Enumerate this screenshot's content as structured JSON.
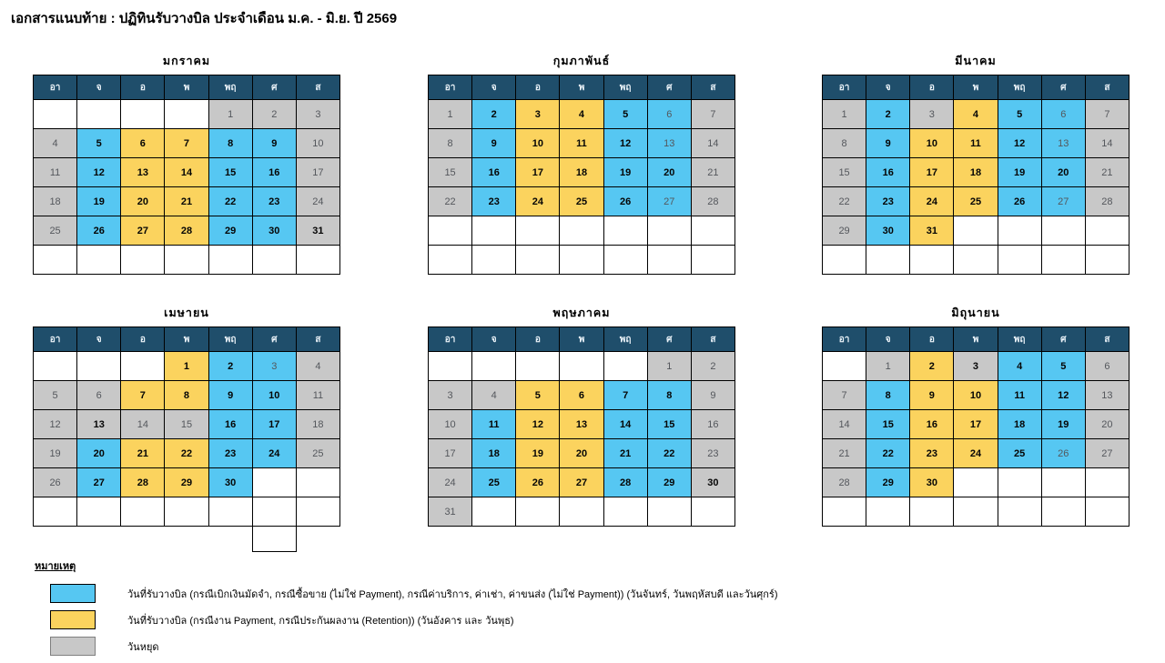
{
  "page": {
    "title": "เอกสารแนบท้าย : ปฏิทินรับวางบิล ประจำเดือน ม.ค. - มิ.ย. ปี 2569",
    "year_be": "2569"
  },
  "colors": {
    "header_bg": "#1F4E6B",
    "billing_blue": "#56C7F2",
    "payment_yellow": "#FBD35E",
    "holiday_gray": "#C8C8C8",
    "grid_border": "#000000",
    "muted_day_text": "#54575C"
  },
  "weekday_headers": [
    "อา",
    "จ",
    "อ",
    "พ",
    "พฤ",
    "ศ",
    "ส"
  ],
  "cell_format_note": "cell = [day_number, color_code(b=blue,y=yellow,g=gray), bold(1/0)], null = empty cell",
  "months": [
    {
      "name": "มกราคม",
      "rows": [
        [
          null,
          null,
          null,
          null,
          [
            1,
            "g",
            0
          ],
          [
            2,
            "g",
            0
          ],
          [
            3,
            "g",
            0
          ]
        ],
        [
          [
            4,
            "g",
            0
          ],
          [
            5,
            "b",
            1
          ],
          [
            6,
            "y",
            1
          ],
          [
            7,
            "y",
            1
          ],
          [
            8,
            "b",
            1
          ],
          [
            9,
            "b",
            1
          ],
          [
            10,
            "g",
            0
          ]
        ],
        [
          [
            11,
            "g",
            0
          ],
          [
            12,
            "b",
            1
          ],
          [
            13,
            "y",
            1
          ],
          [
            14,
            "y",
            1
          ],
          [
            15,
            "b",
            1
          ],
          [
            16,
            "b",
            1
          ],
          [
            17,
            "g",
            0
          ]
        ],
        [
          [
            18,
            "g",
            0
          ],
          [
            19,
            "b",
            1
          ],
          [
            20,
            "y",
            1
          ],
          [
            21,
            "y",
            1
          ],
          [
            22,
            "b",
            1
          ],
          [
            23,
            "b",
            1
          ],
          [
            24,
            "g",
            0
          ]
        ],
        [
          [
            25,
            "g",
            0
          ],
          [
            26,
            "b",
            1
          ],
          [
            27,
            "y",
            1
          ],
          [
            28,
            "y",
            1
          ],
          [
            29,
            "b",
            1
          ],
          [
            30,
            "b",
            1
          ],
          [
            31,
            "g",
            1
          ]
        ],
        [
          null,
          null,
          null,
          null,
          null,
          null,
          null
        ]
      ]
    },
    {
      "name": "กุมภาพันธ์",
      "rows": [
        [
          [
            1,
            "g",
            0
          ],
          [
            2,
            "b",
            1
          ],
          [
            3,
            "y",
            1
          ],
          [
            4,
            "y",
            1
          ],
          [
            5,
            "b",
            1
          ],
          [
            6,
            "b",
            0
          ],
          [
            7,
            "g",
            0
          ]
        ],
        [
          [
            8,
            "g",
            0
          ],
          [
            9,
            "b",
            1
          ],
          [
            10,
            "y",
            1
          ],
          [
            11,
            "y",
            1
          ],
          [
            12,
            "b",
            1
          ],
          [
            13,
            "b",
            0
          ],
          [
            14,
            "g",
            0
          ]
        ],
        [
          [
            15,
            "g",
            0
          ],
          [
            16,
            "b",
            1
          ],
          [
            17,
            "y",
            1
          ],
          [
            18,
            "y",
            1
          ],
          [
            19,
            "b",
            1
          ],
          [
            20,
            "b",
            1
          ],
          [
            21,
            "g",
            0
          ]
        ],
        [
          [
            22,
            "g",
            0
          ],
          [
            23,
            "b",
            1
          ],
          [
            24,
            "y",
            1
          ],
          [
            25,
            "y",
            1
          ],
          [
            26,
            "b",
            1
          ],
          [
            27,
            "b",
            0
          ],
          [
            28,
            "g",
            0
          ]
        ],
        [
          null,
          null,
          null,
          null,
          null,
          null,
          null
        ],
        [
          null,
          null,
          null,
          null,
          null,
          null,
          null
        ]
      ]
    },
    {
      "name": "มีนาคม",
      "rows": [
        [
          [
            1,
            "g",
            0
          ],
          [
            2,
            "b",
            1
          ],
          [
            3,
            "g",
            0
          ],
          [
            4,
            "y",
            1
          ],
          [
            5,
            "b",
            1
          ],
          [
            6,
            "b",
            0
          ],
          [
            7,
            "g",
            0
          ]
        ],
        [
          [
            8,
            "g",
            0
          ],
          [
            9,
            "b",
            1
          ],
          [
            10,
            "y",
            1
          ],
          [
            11,
            "y",
            1
          ],
          [
            12,
            "b",
            1
          ],
          [
            13,
            "b",
            0
          ],
          [
            14,
            "g",
            0
          ]
        ],
        [
          [
            15,
            "g",
            0
          ],
          [
            16,
            "b",
            1
          ],
          [
            17,
            "y",
            1
          ],
          [
            18,
            "y",
            1
          ],
          [
            19,
            "b",
            1
          ],
          [
            20,
            "b",
            1
          ],
          [
            21,
            "g",
            0
          ]
        ],
        [
          [
            22,
            "g",
            0
          ],
          [
            23,
            "b",
            1
          ],
          [
            24,
            "y",
            1
          ],
          [
            25,
            "y",
            1
          ],
          [
            26,
            "b",
            1
          ],
          [
            27,
            "b",
            0
          ],
          [
            28,
            "g",
            0
          ]
        ],
        [
          [
            29,
            "g",
            0
          ],
          [
            30,
            "b",
            1
          ],
          [
            31,
            "y",
            1
          ],
          null,
          null,
          null,
          null
        ],
        [
          null,
          null,
          null,
          null,
          null,
          null,
          null
        ]
      ]
    },
    {
      "name": "เมษายน",
      "rows": [
        [
          null,
          null,
          null,
          [
            1,
            "y",
            1
          ],
          [
            2,
            "b",
            1
          ],
          [
            3,
            "b",
            0
          ],
          [
            4,
            "g",
            0
          ]
        ],
        [
          [
            5,
            "g",
            0
          ],
          [
            6,
            "g",
            0
          ],
          [
            7,
            "y",
            1
          ],
          [
            8,
            "y",
            1
          ],
          [
            9,
            "b",
            1
          ],
          [
            10,
            "b",
            1
          ],
          [
            11,
            "g",
            0
          ]
        ],
        [
          [
            12,
            "g",
            0
          ],
          [
            13,
            "g",
            1
          ],
          [
            14,
            "g",
            0
          ],
          [
            15,
            "g",
            0
          ],
          [
            16,
            "b",
            1
          ],
          [
            17,
            "b",
            1
          ],
          [
            18,
            "g",
            0
          ]
        ],
        [
          [
            19,
            "g",
            0
          ],
          [
            20,
            "b",
            1
          ],
          [
            21,
            "y",
            1
          ],
          [
            22,
            "y",
            1
          ],
          [
            23,
            "b",
            1
          ],
          [
            24,
            "b",
            1
          ],
          [
            25,
            "g",
            0
          ]
        ],
        [
          [
            26,
            "g",
            0
          ],
          [
            27,
            "b",
            1
          ],
          [
            28,
            "y",
            1
          ],
          [
            29,
            "y",
            1
          ],
          [
            30,
            "b",
            1
          ],
          null,
          null
        ],
        [
          null,
          null,
          null,
          null,
          null,
          null,
          null
        ]
      ],
      "extra_cell": {
        "col": 5
      }
    },
    {
      "name": "พฤษภาคม",
      "rows": [
        [
          null,
          null,
          null,
          null,
          null,
          [
            1,
            "g",
            0
          ],
          [
            2,
            "g",
            0
          ]
        ],
        [
          [
            3,
            "g",
            0
          ],
          [
            4,
            "g",
            0
          ],
          [
            5,
            "y",
            1
          ],
          [
            6,
            "y",
            1
          ],
          [
            7,
            "b",
            1
          ],
          [
            8,
            "b",
            1
          ],
          [
            9,
            "g",
            0
          ]
        ],
        [
          [
            10,
            "g",
            0
          ],
          [
            11,
            "b",
            1
          ],
          [
            12,
            "y",
            1
          ],
          [
            13,
            "y",
            1
          ],
          [
            14,
            "b",
            1
          ],
          [
            15,
            "b",
            1
          ],
          [
            16,
            "g",
            0
          ]
        ],
        [
          [
            17,
            "g",
            0
          ],
          [
            18,
            "b",
            1
          ],
          [
            19,
            "y",
            1
          ],
          [
            20,
            "y",
            1
          ],
          [
            21,
            "b",
            1
          ],
          [
            22,
            "b",
            1
          ],
          [
            23,
            "g",
            0
          ]
        ],
        [
          [
            24,
            "g",
            0
          ],
          [
            25,
            "b",
            1
          ],
          [
            26,
            "y",
            1
          ],
          [
            27,
            "y",
            1
          ],
          [
            28,
            "b",
            1
          ],
          [
            29,
            "b",
            1
          ],
          [
            30,
            "g",
            1
          ]
        ],
        [
          [
            31,
            "g",
            0
          ],
          null,
          null,
          null,
          null,
          null,
          null
        ]
      ]
    },
    {
      "name": "มิถุนายน",
      "rows": [
        [
          null,
          [
            1,
            "g",
            0
          ],
          [
            2,
            "y",
            1
          ],
          [
            3,
            "g",
            1
          ],
          [
            4,
            "b",
            1
          ],
          [
            5,
            "b",
            1
          ],
          [
            6,
            "g",
            0
          ]
        ],
        [
          [
            7,
            "g",
            0
          ],
          [
            8,
            "b",
            1
          ],
          [
            9,
            "y",
            1
          ],
          [
            10,
            "y",
            1
          ],
          [
            11,
            "b",
            1
          ],
          [
            12,
            "b",
            1
          ],
          [
            13,
            "g",
            0
          ]
        ],
        [
          [
            14,
            "g",
            0
          ],
          [
            15,
            "b",
            1
          ],
          [
            16,
            "y",
            1
          ],
          [
            17,
            "y",
            1
          ],
          [
            18,
            "b",
            1
          ],
          [
            19,
            "b",
            1
          ],
          [
            20,
            "g",
            0
          ]
        ],
        [
          [
            21,
            "g",
            0
          ],
          [
            22,
            "b",
            1
          ],
          [
            23,
            "y",
            1
          ],
          [
            24,
            "y",
            1
          ],
          [
            25,
            "b",
            1
          ],
          [
            26,
            "b",
            0
          ],
          [
            27,
            "g",
            0
          ]
        ],
        [
          [
            28,
            "g",
            0
          ],
          [
            29,
            "b",
            1
          ],
          [
            30,
            "y",
            1
          ],
          null,
          null,
          null,
          null
        ],
        [
          null,
          null,
          null,
          null,
          null,
          null,
          null
        ]
      ]
    }
  ],
  "legend": {
    "heading": "หมายเหตุ",
    "items": [
      {
        "color": "blue",
        "label": "วันที่รับวางบิล (กรณีเบิกเงินมัดจำ, กรณีซื้อขาย (ไม่ใช่ Payment), กรณีค่าบริการ, ค่าเช่า, ค่าขนส่ง (ไม่ใช่ Payment)) (วันจันทร์, วันพฤหัสบดี และวันศุกร์)"
      },
      {
        "color": "yellow",
        "label": "วันที่รับวางบิล (กรณีงาน Payment, กรณีประกันผลงาน (Retention)) (วันอังคาร และ วันพุธ)"
      },
      {
        "color": "gray",
        "label": "วันหยุด"
      }
    ]
  }
}
